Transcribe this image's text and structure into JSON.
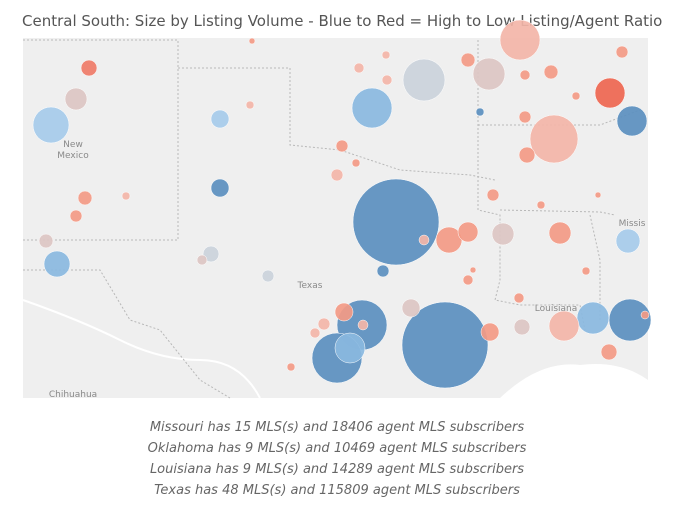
{
  "title": "Central South: Size by Listing Volume - Blue to Red = High to Low Listing/Agent Ratio",
  "map_labels": [
    "New",
    "Mexico",
    "Texas",
    "Louisiana",
    "Missis",
    "Chihuahua"
  ],
  "notes": [
    "Missouri has 15 MLS(s) and 18406 agent MLS subscribers",
    "Oklahoma has 9 MLS(s) and 10469 agent MLS subscribers",
    "Louisiana has 9 MLS(s) and 14289 agent MLS subscribers",
    "Texas has 48 MLS(s) and 115809 agent MLS subscribers"
  ]
}
